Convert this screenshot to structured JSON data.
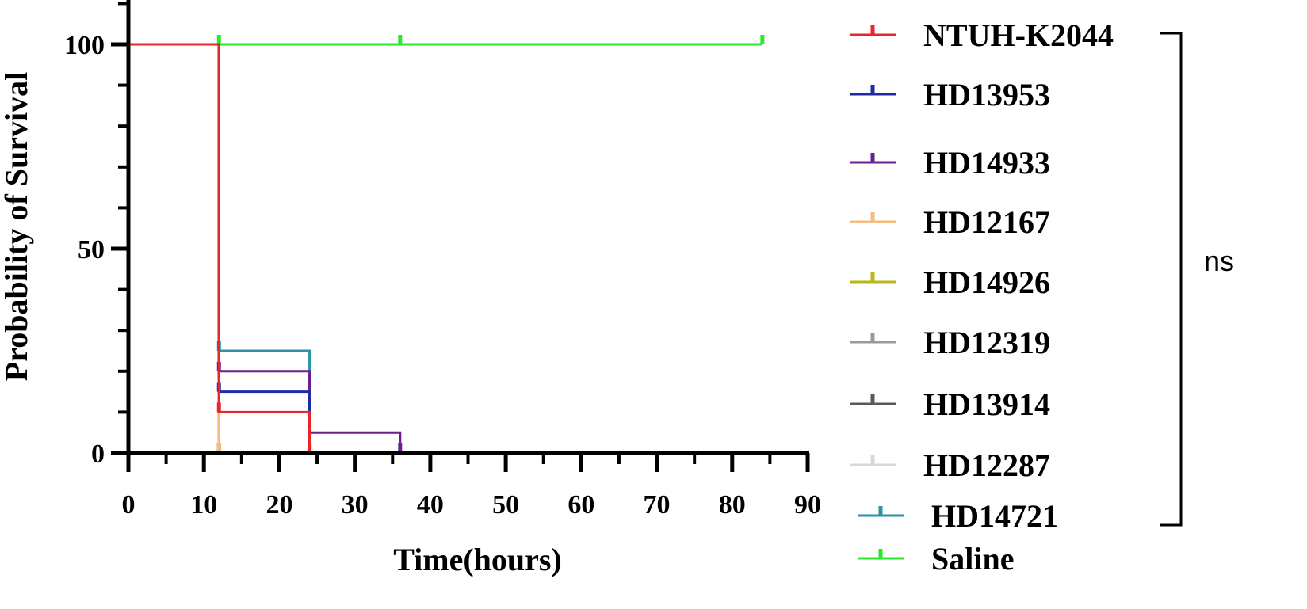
{
  "chart_data": {
    "type": "line",
    "title": "",
    "xlabel": "Time(hours)",
    "ylabel": "Probability of Survival",
    "xlim": [
      0,
      90
    ],
    "ylim": [
      0,
      100
    ],
    "xticks": [
      0,
      10,
      20,
      30,
      40,
      50,
      60,
      70,
      80,
      90
    ],
    "yticks": [
      0,
      50,
      100
    ],
    "grid": false,
    "legend_position": "right",
    "series": [
      {
        "name": "NTUH-K2044",
        "color": "#e8262a",
        "x": [
          0,
          12,
          24
        ],
        "y": [
          100,
          10,
          0
        ]
      },
      {
        "name": "HD13953",
        "color": "#1f2aa8",
        "x": [
          0,
          12,
          24
        ],
        "y": [
          100,
          15,
          0
        ]
      },
      {
        "name": "HD14933",
        "color": "#6d1f8e",
        "x": [
          0,
          12,
          24,
          36
        ],
        "y": [
          100,
          20,
          5,
          0
        ]
      },
      {
        "name": "HD12167",
        "color": "#f5bd82",
        "x": [
          0,
          12,
          24
        ],
        "y": [
          100,
          0,
          0
        ]
      },
      {
        "name": "HD14926",
        "color": "#b8b81a",
        "x": [
          0,
          12,
          24
        ],
        "y": [
          100,
          0,
          0
        ]
      },
      {
        "name": "HD12319",
        "color": "#9a9a9a",
        "x": [
          0,
          12,
          24
        ],
        "y": [
          100,
          0,
          0
        ]
      },
      {
        "name": "HD13914",
        "color": "#5a5a5a",
        "x": [
          0,
          12,
          24
        ],
        "y": [
          100,
          0,
          0
        ]
      },
      {
        "name": "HD12287",
        "color": "#d8d8d8",
        "x": [
          0,
          12,
          24
        ],
        "y": [
          100,
          0,
          0
        ]
      },
      {
        "name": "HD14721",
        "color": "#2a93a8",
        "x": [
          0,
          12,
          24
        ],
        "y": [
          100,
          25,
          0
        ]
      },
      {
        "name": "Saline",
        "color": "#2ce82c",
        "x": [
          0,
          12,
          36,
          84
        ],
        "y": [
          100,
          100,
          100,
          100
        ]
      }
    ],
    "annotations": [
      {
        "text": "ns"
      }
    ]
  }
}
